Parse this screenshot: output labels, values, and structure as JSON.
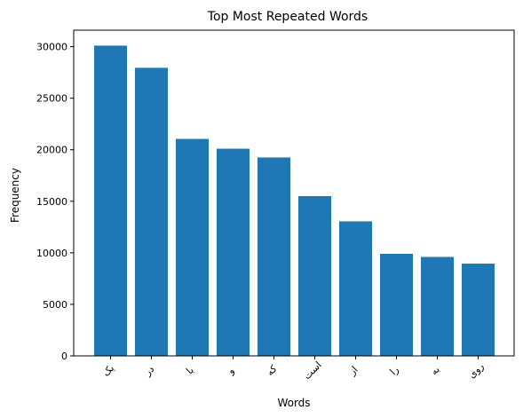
{
  "chart_data": {
    "type": "bar",
    "title": "Top Most Repeated Words",
    "xlabel": "Words",
    "ylabel": "Frequency",
    "categories": [
      "یک",
      "در",
      "با",
      "و",
      "که",
      "است",
      "از",
      "را",
      "به",
      "روی"
    ],
    "values": [
      30100,
      27950,
      21050,
      20100,
      19250,
      15500,
      13050,
      9900,
      9600,
      8950
    ],
    "ylim": [
      0,
      31600
    ],
    "yticks": [
      0,
      5000,
      10000,
      15000,
      20000,
      25000,
      30000
    ],
    "grid": false,
    "legend": "none",
    "bar_color": "#1f77b4"
  }
}
